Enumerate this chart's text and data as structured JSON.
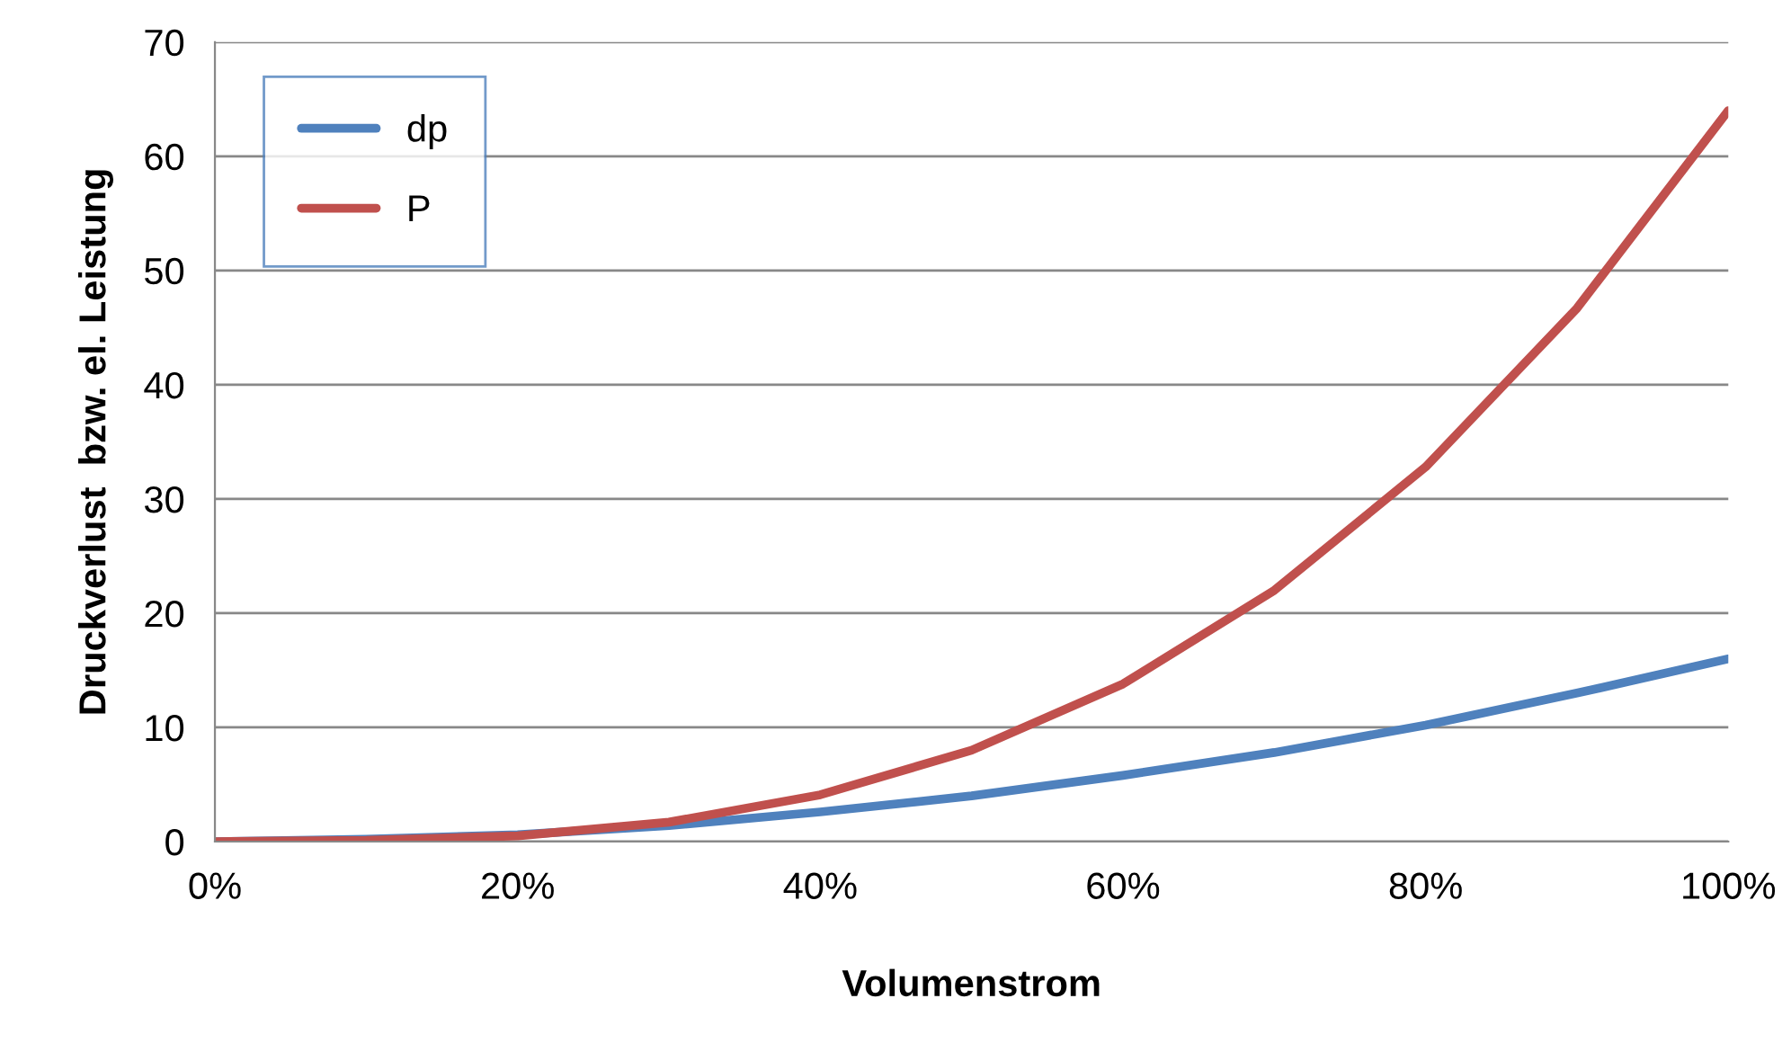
{
  "chart_data": {
    "type": "line",
    "xlabel": "Volumenstrom",
    "ylabel": "Druckverlust  bzw. el. Leistung",
    "x": [
      0,
      10,
      20,
      30,
      40,
      50,
      60,
      70,
      80,
      90,
      100
    ],
    "series": [
      {
        "name": "dp",
        "color": "#4f81bd",
        "values": [
          0,
          0.2,
          0.6,
          1.4,
          2.6,
          4,
          5.8,
          7.8,
          10.2,
          13,
          16
        ]
      },
      {
        "name": "P",
        "color": "#c0504d",
        "values": [
          0,
          0.1,
          0.5,
          1.7,
          4.1,
          8,
          13.8,
          22,
          32.8,
          46.7,
          64
        ]
      }
    ],
    "xlim": [
      0,
      100
    ],
    "xticks": [
      {
        "value": 0,
        "label": "0%"
      },
      {
        "value": 20,
        "label": "20%"
      },
      {
        "value": 40,
        "label": "40%"
      },
      {
        "value": 60,
        "label": "60%"
      },
      {
        "value": 80,
        "label": "80%"
      },
      {
        "value": 100,
        "label": "100%"
      }
    ],
    "ylim": [
      0,
      70
    ],
    "yticks": [
      0,
      10,
      20,
      30,
      40,
      50,
      60,
      70
    ],
    "grid": "y",
    "legend": "top left",
    "marker": "none",
    "line_style": "solid"
  }
}
